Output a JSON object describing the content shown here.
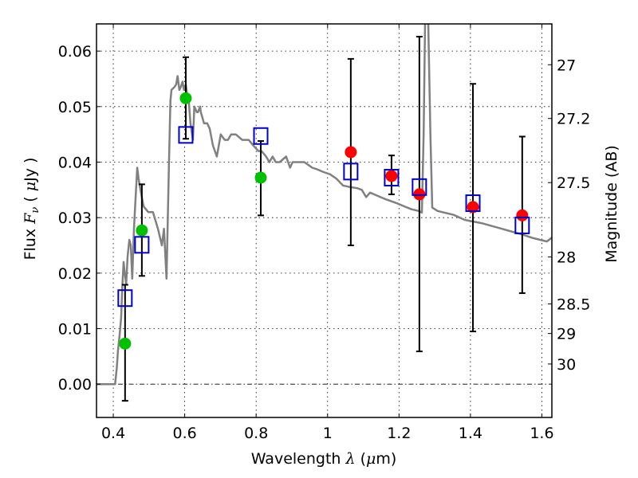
{
  "chart_data": {
    "type": "line",
    "title": "",
    "xlabel": "Wavelength  λ (μm)",
    "ylabel": "Flux  Fν  ( μJy )",
    "ylabel_right": "Magnitude (AB)",
    "xlim": [
      0.353,
      1.628
    ],
    "ylim": [
      -0.006,
      0.0649
    ],
    "grid": true,
    "x_ticks": [
      0.4,
      0.6,
      0.8,
      1.0,
      1.2,
      1.4,
      1.6
    ],
    "x_tick_labels": [
      "0.4",
      "0.6",
      "0.8",
      "1",
      "1.2",
      "1.4",
      "1.6"
    ],
    "y_ticks": [
      0.0,
      0.01,
      0.02,
      0.03,
      0.04,
      0.05,
      0.06
    ],
    "y_tick_labels": [
      "0.00",
      "0.01",
      "0.02",
      "0.03",
      "0.04",
      "0.05",
      "0.06"
    ],
    "right_ticks_mag": [
      27,
      27.2,
      27.5,
      28,
      28.5,
      29,
      30
    ],
    "right_tick_labels": [
      "27",
      "27.2",
      "27.5",
      "28",
      "28.5",
      "29",
      "30"
    ],
    "ab_zeropoint_uJy": 23.9,
    "colors": {
      "spectrum": "#808080",
      "observed_uncertain": "#00c000",
      "observed": "#ff0000",
      "model": "#0000cc",
      "errorbar": "#000000"
    },
    "series": [
      {
        "name": "model-spectrum",
        "kind": "line",
        "x": [
          0.353,
          0.405,
          0.41,
          0.413,
          0.418,
          0.422,
          0.425,
          0.429,
          0.432,
          0.436,
          0.44,
          0.445,
          0.449,
          0.453,
          0.458,
          0.462,
          0.467,
          0.471,
          0.476,
          0.485,
          0.498,
          0.511,
          0.525,
          0.536,
          0.542,
          0.549,
          0.556,
          0.56,
          0.563,
          0.571,
          0.576,
          0.58,
          0.585,
          0.589,
          0.594,
          0.598,
          0.603,
          0.607,
          0.612,
          0.616,
          0.623,
          0.627,
          0.634,
          0.637,
          0.643,
          0.645,
          0.654,
          0.663,
          0.67,
          0.679,
          0.69,
          0.701,
          0.712,
          0.721,
          0.73,
          0.743,
          0.761,
          0.779,
          0.792,
          0.806,
          0.815,
          0.828,
          0.837,
          0.846,
          0.855,
          0.866,
          0.884,
          0.895,
          0.902,
          0.917,
          0.935,
          0.946,
          0.957,
          0.971,
          0.989,
          1.007,
          1.025,
          1.043,
          1.063,
          1.083,
          1.096,
          1.108,
          1.119,
          1.13,
          1.141,
          1.152,
          1.163,
          1.19,
          1.212,
          1.235,
          1.255,
          1.264,
          1.269,
          1.273,
          1.276,
          1.282,
          1.288,
          1.293,
          1.308,
          1.353,
          1.384,
          1.431,
          1.487,
          1.543,
          1.576,
          1.614,
          1.628
        ],
        "y": [
          0.0,
          0.0,
          0.003,
          0.006,
          0.009,
          0.012,
          0.017,
          0.022,
          0.02,
          0.018,
          0.023,
          0.026,
          0.025,
          0.019,
          0.028,
          0.033,
          0.039,
          0.037,
          0.035,
          0.032,
          0.031,
          0.031,
          0.028,
          0.025,
          0.028,
          0.019,
          0.04,
          0.051,
          0.053,
          0.0535,
          0.054,
          0.0555,
          0.053,
          0.0535,
          0.0545,
          0.053,
          0.054,
          0.052,
          0.0505,
          0.047,
          0.044,
          0.05,
          0.049,
          0.049,
          0.05,
          0.049,
          0.047,
          0.047,
          0.046,
          0.043,
          0.041,
          0.045,
          0.044,
          0.044,
          0.045,
          0.045,
          0.044,
          0.044,
          0.043,
          0.042,
          0.042,
          0.041,
          0.04,
          0.041,
          0.04,
          0.04,
          0.041,
          0.039,
          0.04,
          0.04,
          0.04,
          0.0395,
          0.039,
          0.0387,
          0.0382,
          0.0378,
          0.037,
          0.0358,
          0.0355,
          0.0353,
          0.035,
          0.0337,
          0.0345,
          0.0342,
          0.0339,
          0.0336,
          0.0333,
          0.0327,
          0.0321,
          0.0315,
          0.0312,
          0.0309,
          0.045,
          0.065,
          0.068,
          0.065,
          0.045,
          0.0318,
          0.0312,
          0.0305,
          0.0296,
          0.029,
          0.028,
          0.027,
          0.0263,
          0.0257,
          0.0264
        ]
      },
      {
        "name": "photometry-low-sn",
        "kind": "scatter",
        "marker": "circle",
        "color_key": "observed_uncertain",
        "x": [
          0.433,
          0.48,
          0.603,
          0.813
        ],
        "y": [
          0.0073,
          0.0277,
          0.0515,
          0.0372
        ]
      },
      {
        "name": "photometry",
        "kind": "scatter",
        "marker": "circle",
        "color_key": "observed",
        "x": [
          1.065,
          1.179,
          1.257,
          1.407,
          1.545
        ],
        "y": [
          0.0418,
          0.0375,
          0.0342,
          0.0319,
          0.0304
        ]
      },
      {
        "name": "model-photometry",
        "kind": "scatter",
        "marker": "open-square",
        "color_key": "model",
        "x": [
          0.433,
          0.48,
          0.603,
          0.813,
          1.065,
          1.179,
          1.257,
          1.407,
          1.545
        ],
        "y": [
          0.0155,
          0.0251,
          0.0449,
          0.0447,
          0.0383,
          0.0372,
          0.0355,
          0.0326,
          0.0286
        ]
      },
      {
        "name": "error-bars",
        "kind": "errorbar",
        "x": [
          0.433,
          0.48,
          0.603,
          0.813,
          1.065,
          1.179,
          1.257,
          1.407,
          1.545
        ],
        "y_low": [
          -0.003,
          0.0195,
          0.0442,
          0.0304,
          0.025,
          0.0342,
          0.0059,
          0.0095,
          0.0164
        ],
        "y_high": [
          0.0179,
          0.036,
          0.0589,
          0.0438,
          0.0586,
          0.0412,
          0.0626,
          0.0541,
          0.0446
        ]
      }
    ]
  }
}
